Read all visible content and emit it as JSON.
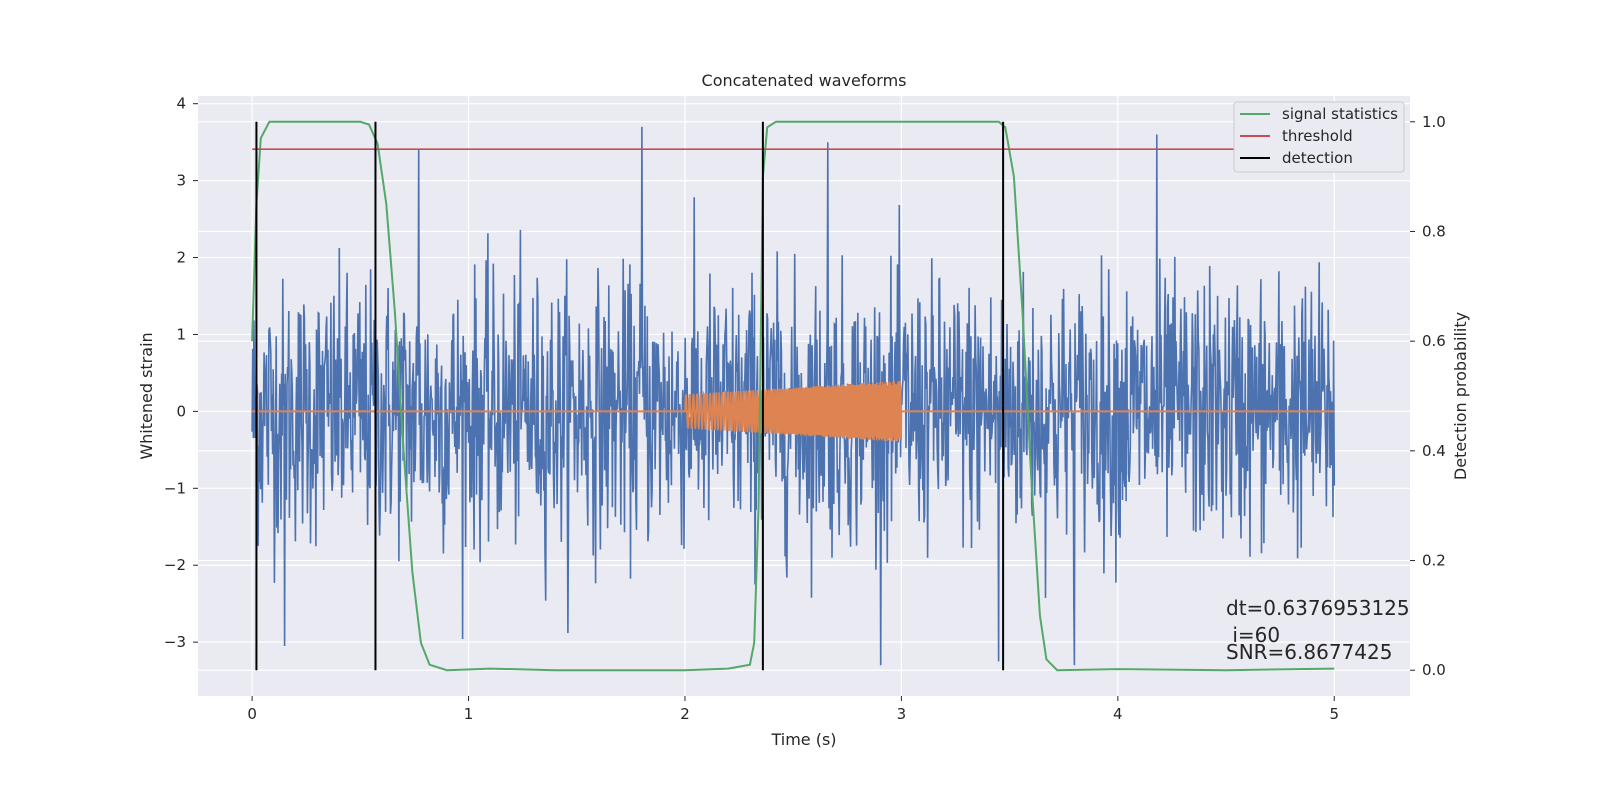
{
  "chart_data": {
    "type": "line",
    "title": "Concatenated waveforms",
    "xlabel": "Time (s)",
    "ylabel": "Whitened strain",
    "y2label": "Detection probability",
    "xlim": [
      -0.25,
      5.35
    ],
    "ylim": [
      -3.7,
      4.1
    ],
    "y2lim": [
      -0.047,
      1.047
    ],
    "xticks": [
      "0",
      "1",
      "2",
      "3",
      "4",
      "5"
    ],
    "yticks": [
      "−3",
      "−2",
      "−1",
      "0",
      "1",
      "2",
      "3",
      "4"
    ],
    "y2ticks": [
      "0.0",
      "0.2",
      "0.4",
      "0.6",
      "0.8",
      "1.0"
    ],
    "grid": true,
    "legend_position": "top-right",
    "colors": {
      "strain": "#4c72b0",
      "template": "#dd8452",
      "signal_statistics": "#55a868",
      "threshold": "#c44e52",
      "detection": "#000000",
      "background": "#eaeaf2",
      "grid": "#ffffff"
    },
    "series": [
      {
        "name": "",
        "kind": "noise",
        "x_range": [
          0,
          5
        ],
        "amplitude_range": [
          -3.3,
          3.7
        ],
        "peaks": [
          {
            "x": 1.8,
            "y": 3.7
          },
          {
            "x": 4.18,
            "y": 3.6
          },
          {
            "x": 0.77,
            "y": 3.4
          },
          {
            "x": 2.66,
            "y": 3.5
          },
          {
            "x": 0.15,
            "y": -3.05
          },
          {
            "x": 3.8,
            "y": -3.3
          },
          {
            "x": 3.45,
            "y": -3.25
          }
        ]
      },
      {
        "name": "",
        "kind": "chirp",
        "x_range": [
          2.0,
          3.0
        ],
        "amplitude_start": 0.22,
        "amplitude_end": 0.4
      },
      {
        "name": "signal statistics",
        "axis": "right",
        "points": [
          [
            0.0,
            0.6
          ],
          [
            0.02,
            0.85
          ],
          [
            0.04,
            0.97
          ],
          [
            0.08,
            1.0
          ],
          [
            0.5,
            1.0
          ],
          [
            0.54,
            0.995
          ],
          [
            0.58,
            0.96
          ],
          [
            0.62,
            0.85
          ],
          [
            0.66,
            0.65
          ],
          [
            0.7,
            0.4
          ],
          [
            0.74,
            0.18
          ],
          [
            0.78,
            0.05
          ],
          [
            0.82,
            0.01
          ],
          [
            0.9,
            0.0
          ],
          [
            1.1,
            0.003
          ],
          [
            1.4,
            0.0
          ],
          [
            2.0,
            0.0
          ],
          [
            2.2,
            0.003
          ],
          [
            2.3,
            0.01
          ],
          [
            2.32,
            0.05
          ],
          [
            2.34,
            0.3
          ],
          [
            2.36,
            0.9
          ],
          [
            2.38,
            0.99
          ],
          [
            2.42,
            1.0
          ],
          [
            3.45,
            1.0
          ],
          [
            3.48,
            0.99
          ],
          [
            3.52,
            0.9
          ],
          [
            3.56,
            0.65
          ],
          [
            3.6,
            0.35
          ],
          [
            3.64,
            0.1
          ],
          [
            3.67,
            0.02
          ],
          [
            3.72,
            0.0
          ],
          [
            4.0,
            0.002
          ],
          [
            4.5,
            0.0
          ],
          [
            5.0,
            0.003
          ]
        ]
      },
      {
        "name": "threshold",
        "axis": "right",
        "y": 0.95,
        "x_range": [
          0,
          5.1
        ]
      },
      {
        "name": "detection",
        "axis": "right",
        "vlines_x": [
          0.02,
          0.57,
          2.36,
          3.47
        ],
        "y_range": [
          0.0,
          1.0
        ]
      }
    ],
    "legend": [
      {
        "label": "signal statistics",
        "color": "#55a868"
      },
      {
        "label": "threshold",
        "color": "#c44e52"
      },
      {
        "label": "detection",
        "color": "#000000"
      }
    ],
    "annotations": {
      "dt": "dt=0.6376953125",
      "i": " i=60",
      "snr": "SNR=6.8677425"
    }
  }
}
